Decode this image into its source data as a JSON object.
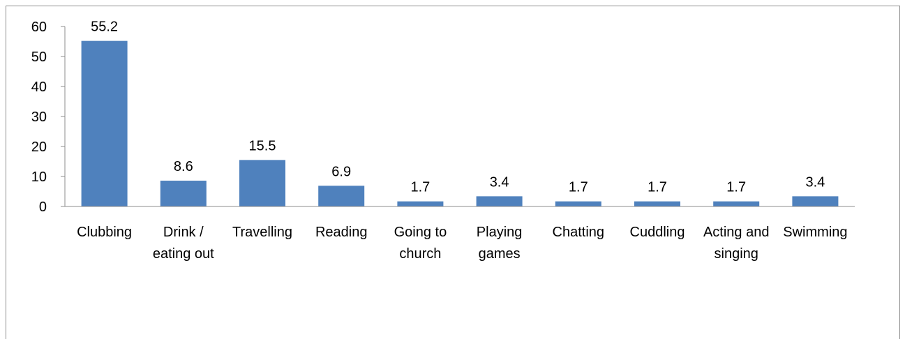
{
  "chart_data": {
    "type": "bar",
    "title": "",
    "xlabel": "",
    "ylabel": "",
    "ylim": [
      0,
      60
    ],
    "yticks": [
      "0",
      "10",
      "20",
      "30",
      "40",
      "50",
      "60"
    ],
    "grid": false,
    "legend": "none",
    "bar_color": "#4f81bd",
    "categories": [
      [
        "Clubbing"
      ],
      [
        "Drink /",
        "eating out"
      ],
      [
        "Travelling"
      ],
      [
        "Reading"
      ],
      [
        "Going to",
        "church"
      ],
      [
        "Playing",
        "games"
      ],
      [
        "Chatting"
      ],
      [
        "Cuddling"
      ],
      [
        "Acting and",
        "singing"
      ],
      [
        "Swimming"
      ]
    ],
    "values": [
      55.2,
      8.6,
      15.5,
      6.9,
      1.7,
      3.4,
      1.7,
      1.7,
      1.7,
      3.4
    ],
    "data_labels": [
      "55.2",
      "8.6",
      "15.5",
      "6.9",
      "1.7",
      "3.4",
      "1.7",
      "1.7",
      "1.7",
      "3.4"
    ]
  }
}
